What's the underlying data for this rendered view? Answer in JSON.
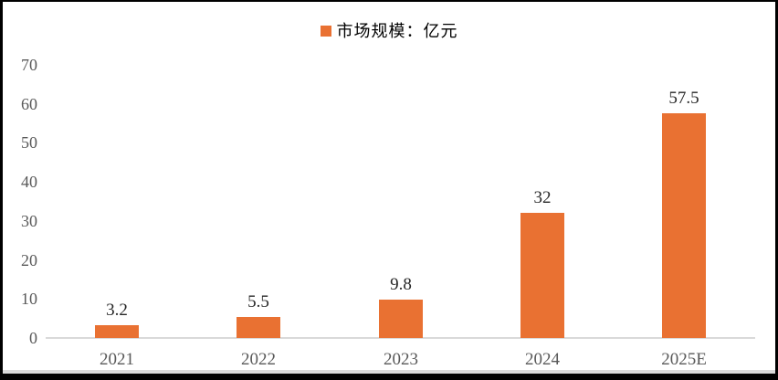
{
  "chart_data": {
    "type": "bar",
    "title": "",
    "legend": "市场规模：亿元",
    "legend_position": "top-center",
    "categories": [
      "2021",
      "2022",
      "2023",
      "2024",
      "2025E"
    ],
    "values": [
      3.2,
      5.5,
      9.8,
      32,
      57.5
    ],
    "value_labels": [
      "3.2",
      "5.5",
      "9.8",
      "32",
      "57.5"
    ],
    "xlabel": "",
    "ylabel": "",
    "ylim": [
      0,
      70
    ],
    "yticks": [
      0,
      10,
      20,
      30,
      40,
      50,
      60,
      70
    ],
    "grid": false,
    "colors": {
      "bar": "#E97132",
      "axis_line": "#d9d9d9",
      "tick_label": "#595959",
      "data_label": "#262626",
      "legend_text": "#000000",
      "background": "#ffffff",
      "frame": "#000000"
    }
  }
}
